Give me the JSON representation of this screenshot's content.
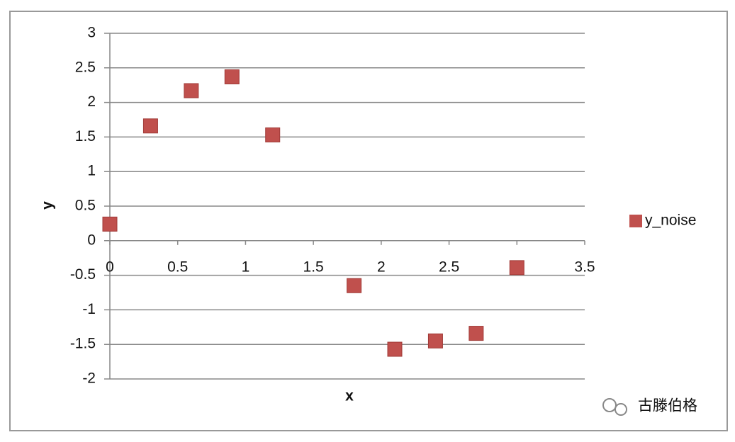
{
  "chart_data": {
    "type": "scatter",
    "xlabel": "x",
    "ylabel": "y",
    "series": [
      {
        "name": "y_noise",
        "color": "#c0504d",
        "x": [
          0,
          0.3,
          0.6,
          0.9,
          1.2,
          1.8,
          2.1,
          2.4,
          2.7,
          3.0
        ],
        "values": [
          0.24,
          1.66,
          2.17,
          2.37,
          1.53,
          -0.65,
          -1.57,
          -1.45,
          -1.34,
          -0.39
        ]
      }
    ],
    "xlim": [
      0,
      3.5
    ],
    "xticks": [
      0,
      0.5,
      1,
      1.5,
      2,
      2.5,
      3,
      3.5
    ],
    "ylim": [
      -2,
      3
    ],
    "yticks": [
      -2,
      -1.5,
      -1,
      -0.5,
      0,
      0.5,
      1,
      1.5,
      2,
      2.5,
      3
    ],
    "grid": true,
    "legend": "right",
    "watermark": "古滕伯格"
  }
}
